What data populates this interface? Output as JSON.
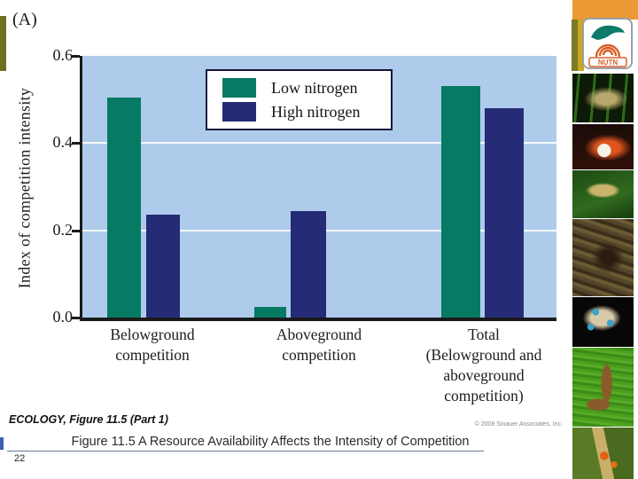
{
  "slide": {
    "panel_label": "(A)",
    "footer": {
      "source_label": "ECOLOGY, Figure 11.5 (Part 1)",
      "copyright": "© 2008 Sinauer Associates, Inc.",
      "caption": "Figure 11.5 A  Resource Availability Affects the Intensity of Competition",
      "page_number": "22"
    },
    "logo": {
      "text": "NUTN"
    },
    "photo_strip": [
      "crickets-on-stems-photo",
      "orange-frog-photo",
      "frog-on-leaf-photo",
      "marmoset-in-tree-photo",
      "blue-ringed-octopus-photo",
      "salamander-on-moss-photo",
      "beetles-on-stem-photo"
    ]
  },
  "chart_data": {
    "type": "bar",
    "title": "",
    "xlabel": "",
    "ylabel": "Index of competition intensity",
    "ylim": [
      0,
      0.6
    ],
    "yticks": [
      0.0,
      0.2,
      0.4,
      0.6
    ],
    "ytick_labels": [
      "0.0",
      "0.2",
      "0.4",
      "0.6"
    ],
    "grid": true,
    "gridline_values": [
      0.2,
      0.4
    ],
    "plot_bg": "#aecbec",
    "legend_position": "inside upper-left of plot",
    "categories": [
      [
        "Belowground",
        "competition"
      ],
      [
        "Aboveground",
        "competition"
      ],
      [
        "Total",
        "(Belowground and",
        "aboveground",
        "competition)"
      ]
    ],
    "series": [
      {
        "name": "Low nitrogen",
        "color": "#077a63",
        "values": [
          0.505,
          0.025,
          0.53
        ]
      },
      {
        "name": "High nitrogen",
        "color": "#252b76",
        "values": [
          0.235,
          0.245,
          0.48
        ]
      }
    ]
  }
}
